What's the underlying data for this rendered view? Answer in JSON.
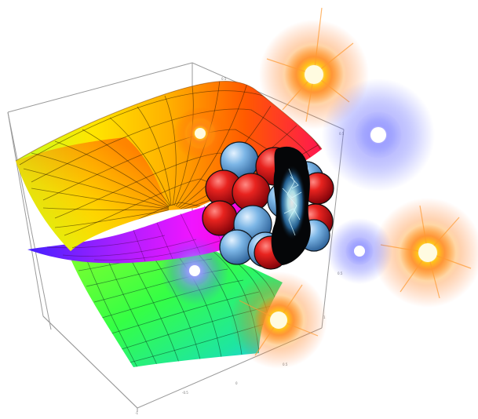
{
  "image": {
    "subject": "Rainbow-colored 3D saddle/spiral surface plot inside a wireframe bounding box, overlaid with a cluster of red and blue spheres (atomic nucleus) and several glowing orange and blue bursts",
    "colors": {
      "surface_gradient": [
        "#ff2a00",
        "#ff8a00",
        "#ffd800",
        "#aaff00",
        "#32ff2a",
        "#18e8a0",
        "#ff00ff",
        "#3a1aff"
      ],
      "proton": "#d9141a",
      "neutron": "#6ea9dc",
      "burst_orange": "#ffb21a",
      "burst_blue": "#5566ff",
      "box_lines": "#9a9a9a"
    },
    "nucleus": {
      "sphere_count": 16
    },
    "bursts": [
      {
        "kind": "orange",
        "name": "burst-top"
      },
      {
        "kind": "orange",
        "name": "burst-left-small"
      },
      {
        "kind": "blue",
        "name": "burst-blue-upper-right"
      },
      {
        "kind": "orange",
        "name": "burst-right"
      },
      {
        "kind": "blue",
        "name": "burst-blue-middle"
      },
      {
        "kind": "blue",
        "name": "burst-blue-lower"
      },
      {
        "kind": "orange",
        "name": "burst-bottom"
      }
    ]
  }
}
